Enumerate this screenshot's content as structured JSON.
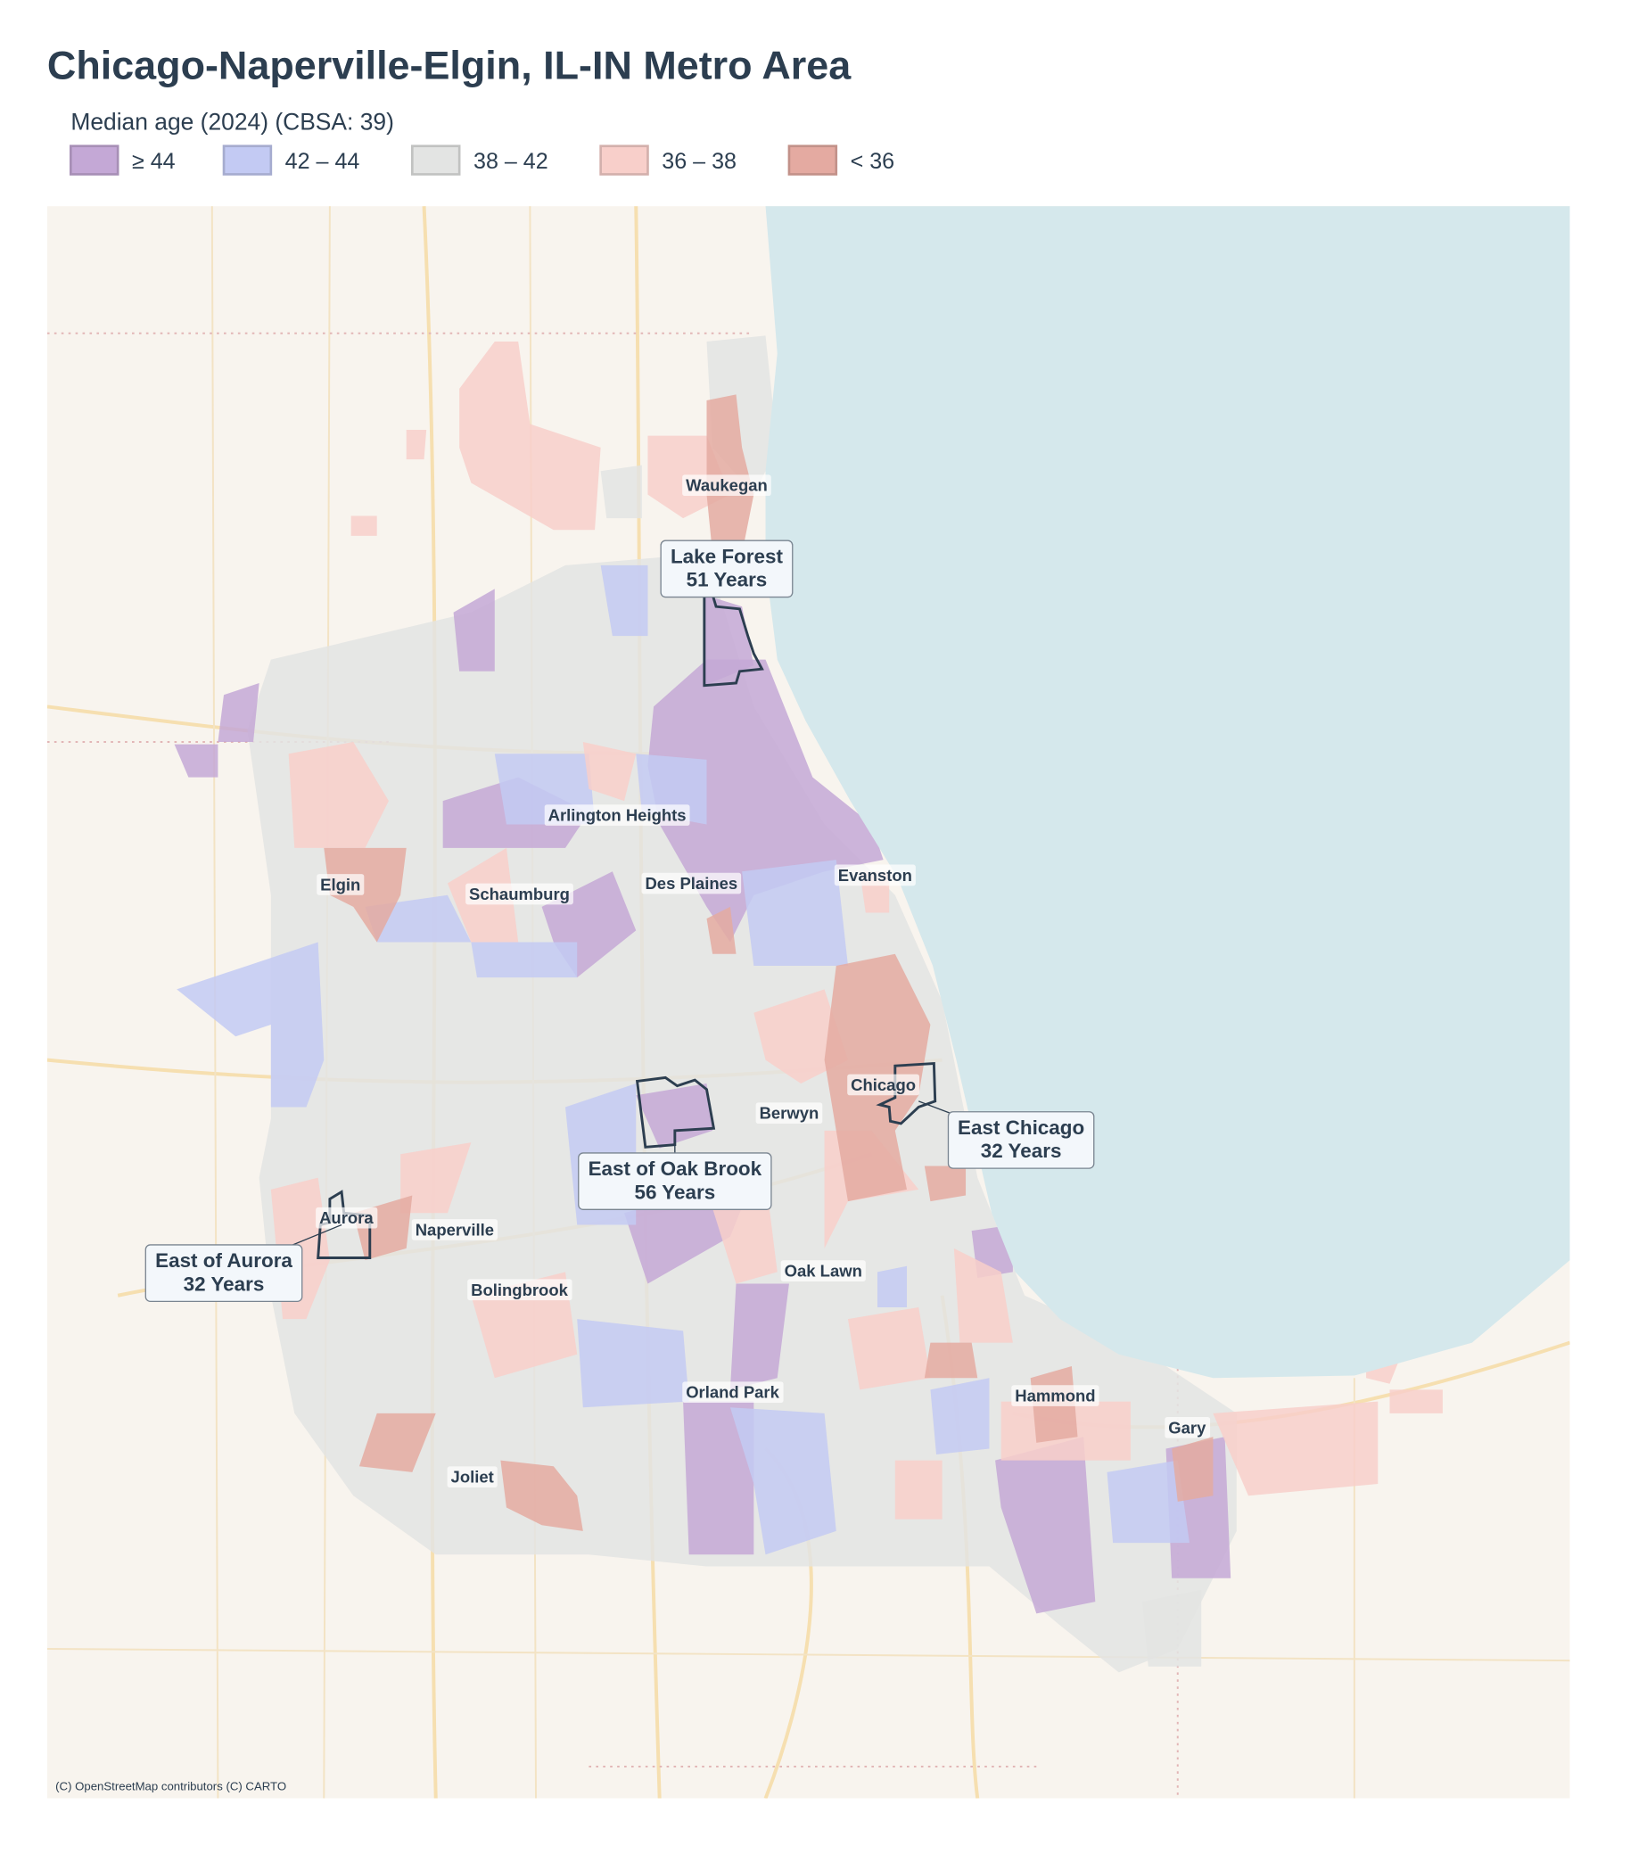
{
  "header": {
    "title": "Chicago-Naperville-Elgin, IL-IN Metro Area"
  },
  "legend": {
    "title": "Median age (2024)  (CBSA: 39)",
    "items": [
      {
        "label": "≥ 44",
        "color": "#c4a8d6"
      },
      {
        "label": "42 – 44",
        "color": "#c3caf3"
      },
      {
        "label": "38 – 42",
        "color": "#e3e4e3"
      },
      {
        "label": "36 – 38",
        "color": "#f8cfca"
      },
      {
        "label": "< 36",
        "color": "#e4aaa1"
      }
    ]
  },
  "places": [
    "Waukegan",
    "Arlington Heights",
    "Elgin",
    "Schaumburg",
    "Des Plaines",
    "Evanston",
    "Chicago",
    "Berwyn",
    "Aurora",
    "Naperville",
    "Bolingbrook",
    "Oak Lawn",
    "Orland Park",
    "Hammond",
    "Gary",
    "Joliet"
  ],
  "callouts": [
    {
      "name": "Lake Forest",
      "value": "51 Years"
    },
    {
      "name": "East Chicago",
      "value": "32 Years"
    },
    {
      "name": "East of Oak Brook",
      "value": "56 Years"
    },
    {
      "name": "East of Aurora",
      "value": "32 Years"
    }
  ],
  "attribution": "(C) OpenStreetMap contributors (C) CARTO"
}
